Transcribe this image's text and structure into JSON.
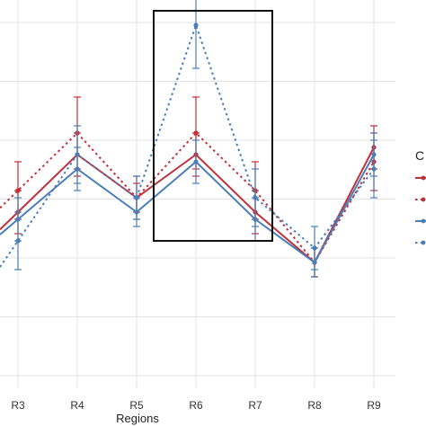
{
  "chart_data": {
    "type": "line",
    "categories": [
      "R3",
      "R4",
      "R5",
      "R6",
      "R7",
      "R8",
      "R9"
    ],
    "xlabel": "Regions",
    "ylabel": "",
    "title": "",
    "ylim": [
      0,
      1
    ],
    "grid": true,
    "legend": {
      "title": "C",
      "placement": "right"
    },
    "colors": {
      "red": "#c0303a",
      "blue": "#4a7eb8",
      "grid": "#e3e3e3",
      "box": "#111111"
    },
    "series": [
      {
        "color": "#c0303a",
        "style": "solid",
        "values": [
          0.58,
          0.66,
          0.6,
          0.66,
          0.58,
          0.51,
          0.67
        ],
        "errors": [
          0.03,
          0.03,
          0.02,
          0.03,
          0.03,
          0.02,
          0.03
        ]
      },
      {
        "color": "#c0303a",
        "style": "dotted",
        "values": [
          0.61,
          0.69,
          0.6,
          0.69,
          0.61,
          0.51,
          0.65
        ],
        "errors": [
          0.04,
          0.05,
          0.03,
          0.05,
          0.04,
          0.02,
          0.04
        ]
      },
      {
        "color": "#4a7eb8",
        "style": "solid",
        "values": [
          0.57,
          0.64,
          0.58,
          0.65,
          0.57,
          0.51,
          0.66
        ],
        "errors": [
          0.03,
          0.03,
          0.02,
          0.03,
          0.03,
          0.02,
          0.03
        ]
      },
      {
        "color": "#4a7eb8",
        "style": "dotted",
        "values": [
          0.54,
          0.66,
          0.6,
          0.84,
          0.6,
          0.53,
          0.64
        ],
        "errors": [
          0.04,
          0.04,
          0.03,
          0.06,
          0.04,
          0.03,
          0.04
        ]
      }
    ],
    "annotations": [
      {
        "type": "box",
        "from": "R5.5",
        "to": "R7.5",
        "y_range": [
          0.54,
          0.86
        ]
      }
    ]
  }
}
